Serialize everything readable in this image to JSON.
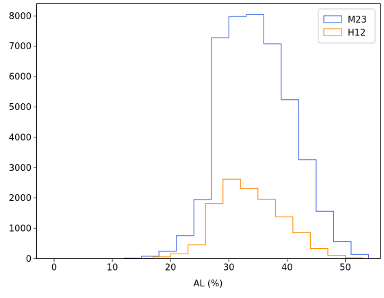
{
  "chart_data": {
    "type": "histogram",
    "title": "",
    "xlabel": "AL (%)",
    "ylabel": "",
    "xlim": [
      -3,
      56
    ],
    "ylim": [
      0,
      8400
    ],
    "xticks": [
      0,
      10,
      20,
      30,
      40,
      50
    ],
    "yticks": [
      0,
      1000,
      2000,
      3000,
      4000,
      5000,
      6000,
      7000,
      8000
    ],
    "grid": false,
    "legend_position": "top-right",
    "series": [
      {
        "name": "M23",
        "color": "#4169e1",
        "bin_edges": [
          0,
          3,
          6,
          9,
          12,
          15,
          18,
          21,
          24,
          27,
          30,
          33,
          36,
          39,
          42,
          45,
          48,
          51,
          54
        ],
        "counts": [
          0,
          0,
          0,
          0,
          20,
          80,
          250,
          760,
          1950,
          7280,
          7980,
          8040,
          7080,
          5240,
          3260,
          1560,
          560,
          140
        ]
      },
      {
        "name": "H12",
        "color": "#ff8c00",
        "bin_edges": [
          12,
          14,
          17,
          20,
          23,
          26,
          29,
          32,
          35,
          38,
          41,
          44,
          47,
          50,
          53
        ],
        "counts": [
          0,
          10,
          60,
          160,
          460,
          1820,
          2620,
          2320,
          1960,
          1380,
          860,
          340,
          110,
          30
        ]
      }
    ]
  }
}
